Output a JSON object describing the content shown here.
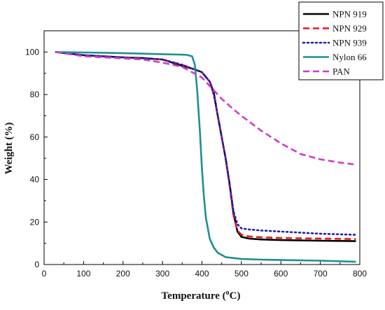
{
  "chart_data": {
    "type": "line",
    "title": "",
    "xlabel": "Temperature (",
    "xlabel_unit": "o",
    "xlabel_tail": "C)",
    "ylabel": "Weight (%)",
    "xlim": [
      0,
      800
    ],
    "ylim": [
      0,
      110
    ],
    "xticks": [
      0,
      100,
      200,
      300,
      400,
      500,
      600,
      700,
      800
    ],
    "yticks": [
      0,
      20,
      40,
      60,
      80,
      100
    ],
    "xtick_labels": [
      "0",
      "100",
      "200",
      "300",
      "400",
      "500",
      "600",
      "700",
      "800"
    ],
    "ytick_labels": [
      "0",
      "20",
      "40",
      "60",
      "80",
      "100"
    ],
    "grid": false,
    "legend_position": "top-right",
    "series": [
      {
        "name": "NPN 919",
        "color": "#000000",
        "style": "solid",
        "x": [
          30,
          100,
          200,
          250,
          300,
          350,
          380,
          400,
          420,
          430,
          440,
          450,
          460,
          470,
          480,
          490,
          500,
          520,
          550,
          600,
          700,
          790
        ],
        "y": [
          100,
          98.5,
          97.5,
          97.2,
          96.5,
          93.5,
          92,
          90.5,
          86,
          81,
          70,
          60,
          50,
          38,
          24,
          15.5,
          13,
          12.2,
          11.8,
          11.5,
          11.2,
          11
        ]
      },
      {
        "name": "NPN 929",
        "color": "#e31a1c",
        "style": "dashed",
        "x": [
          30,
          100,
          200,
          250,
          300,
          350,
          400,
          420,
          430,
          440,
          450,
          460,
          470,
          480,
          490,
          500,
          520,
          550,
          600,
          700,
          790
        ],
        "y": [
          100,
          98.5,
          97.5,
          97,
          96.5,
          94,
          90.5,
          86,
          80,
          70,
          60,
          50,
          37,
          23,
          16,
          14,
          13.2,
          12.8,
          12.5,
          12.2,
          12
        ]
      },
      {
        "name": "NPN 939",
        "color": "#1f1fb0",
        "style": "dotted",
        "x": [
          30,
          100,
          200,
          250,
          300,
          350,
          400,
          420,
          430,
          440,
          450,
          460,
          470,
          480,
          490,
          500,
          520,
          550,
          600,
          700,
          790
        ],
        "y": [
          100,
          98.5,
          97.5,
          97,
          96.5,
          94,
          90.5,
          86,
          80,
          70,
          60,
          50,
          38,
          25,
          19,
          17,
          16.5,
          16,
          15.5,
          14.5,
          14
        ]
      },
      {
        "name": "Nylon 66",
        "color": "#1f8f8f",
        "style": "solid",
        "x": [
          30,
          100,
          200,
          300,
          360,
          375,
          382,
          388,
          395,
          400,
          405,
          410,
          420,
          430,
          440,
          460,
          500,
          550,
          600,
          700,
          790
        ],
        "y": [
          100,
          99.8,
          99.5,
          99,
          98.7,
          98,
          94,
          82,
          62,
          45,
          32,
          22,
          12,
          8,
          5.5,
          3.5,
          2.6,
          2.3,
          2.1,
          1.8,
          1.3
        ]
      },
      {
        "name": "PAN",
        "color": "#cc3dcc",
        "style": "dashed",
        "x": [
          30,
          100,
          200,
          250,
          300,
          350,
          400,
          430,
          450,
          480,
          500,
          550,
          600,
          650,
          700,
          750,
          790
        ],
        "y": [
          100,
          98,
          97,
          96.5,
          95,
          93,
          88,
          82,
          78,
          73,
          70,
          63,
          57,
          52,
          49.5,
          48,
          47
        ]
      }
    ]
  }
}
